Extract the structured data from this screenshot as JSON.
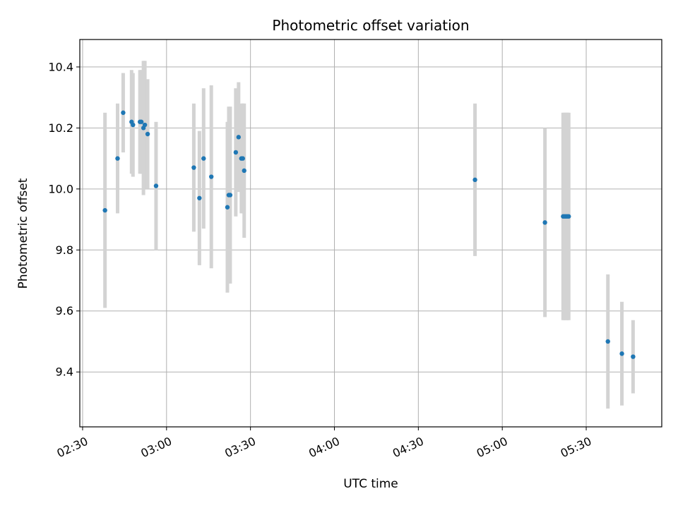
{
  "chart_data": {
    "type": "scatter",
    "title": "Photometric offset variation",
    "xlabel": "UTC time",
    "ylabel": "Photometric offset",
    "xlim": [
      "02:29",
      "05:57"
    ],
    "ylim": [
      9.22,
      10.49
    ],
    "x_ticks": [
      "02:30",
      "03:00",
      "03:30",
      "04:00",
      "04:30",
      "05:00",
      "05:30"
    ],
    "y_ticks": [
      "9.4",
      "9.6",
      "9.8",
      "10.0",
      "10.2",
      "10.4"
    ],
    "grid": true,
    "marker_color": "#1f77b4",
    "errorbar_color": "#d3d3d3",
    "points": [
      {
        "x": "02:38:00",
        "y": 9.93,
        "yerr": 0.32
      },
      {
        "x": "02:42:30",
        "y": 10.1,
        "yerr": 0.18
      },
      {
        "x": "02:44:30",
        "y": 10.25,
        "yerr": 0.13
      },
      {
        "x": "02:47:30",
        "y": 10.22,
        "yerr": 0.17
      },
      {
        "x": "02:48:00",
        "y": 10.21,
        "yerr": 0.17
      },
      {
        "x": "02:50:30",
        "y": 10.22,
        "yerr": 0.17
      },
      {
        "x": "02:51:00",
        "y": 10.22,
        "yerr": 0.17
      },
      {
        "x": "02:51:45",
        "y": 10.2,
        "yerr": 0.22
      },
      {
        "x": "02:52:15",
        "y": 10.21,
        "yerr": 0.21
      },
      {
        "x": "02:53:15",
        "y": 10.18,
        "yerr": 0.18
      },
      {
        "x": "02:56:15",
        "y": 10.01,
        "yerr": 0.21
      },
      {
        "x": "03:09:45",
        "y": 10.07,
        "yerr": 0.21
      },
      {
        "x": "03:11:45",
        "y": 9.97,
        "yerr": 0.22
      },
      {
        "x": "03:13:15",
        "y": 10.1,
        "yerr": 0.23
      },
      {
        "x": "03:16:00",
        "y": 10.04,
        "yerr": 0.3
      },
      {
        "x": "03:21:45",
        "y": 9.94,
        "yerr": 0.28
      },
      {
        "x": "03:22:15",
        "y": 9.98,
        "yerr": 0.29
      },
      {
        "x": "03:22:45",
        "y": 9.98,
        "yerr": 0.29
      },
      {
        "x": "03:24:45",
        "y": 10.12,
        "yerr": 0.21
      },
      {
        "x": "03:25:45",
        "y": 10.17,
        "yerr": 0.18
      },
      {
        "x": "03:26:45",
        "y": 10.1,
        "yerr": 0.18
      },
      {
        "x": "03:27:15",
        "y": 10.1,
        "yerr": 0.18
      },
      {
        "x": "03:27:45",
        "y": 10.06,
        "yerr": 0.22
      },
      {
        "x": "04:50:15",
        "y": 10.03,
        "yerr": 0.25
      },
      {
        "x": "05:15:15",
        "y": 9.89,
        "yerr": 0.31
      },
      {
        "x": "05:21:45",
        "y": 9.91,
        "yerr": 0.34
      },
      {
        "x": "05:22:15",
        "y": 9.91,
        "yerr": 0.34
      },
      {
        "x": "05:22:45",
        "y": 9.91,
        "yerr": 0.34
      },
      {
        "x": "05:23:15",
        "y": 9.91,
        "yerr": 0.34
      },
      {
        "x": "05:23:45",
        "y": 9.91,
        "yerr": 0.34
      },
      {
        "x": "05:37:45",
        "y": 9.5,
        "yerr": 0.22
      },
      {
        "x": "05:42:45",
        "y": 9.46,
        "yerr": 0.17
      },
      {
        "x": "05:46:45",
        "y": 9.45,
        "yerr": 0.12
      }
    ]
  }
}
